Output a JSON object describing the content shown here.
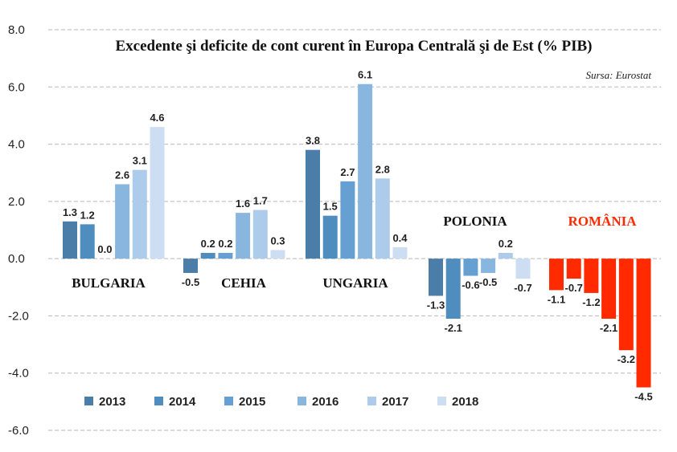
{
  "chart_data": {
    "type": "bar",
    "title": "Excedente şi deficite de cont curent în Europa Centrală şi de Est (% PIB)",
    "source": "Sursa: Eurostat",
    "categories": [
      "BULGARIA",
      "CEHIA",
      "UNGARIA",
      "POLONIA",
      "ROMÂNIA"
    ],
    "series": [
      {
        "name": "2013",
        "values": [
          1.3,
          -0.5,
          3.8,
          -1.3,
          -1.1
        ],
        "labels": [
          "1.3",
          "-0.5",
          "3.8",
          "-1.3",
          "-1.1"
        ]
      },
      {
        "name": "2014",
        "values": [
          1.2,
          0.2,
          1.5,
          -2.1,
          -0.7
        ],
        "labels": [
          "1.2",
          "0.2",
          "1.5",
          "-2.1",
          "-0.7"
        ]
      },
      {
        "name": "2015",
        "values": [
          0.0,
          0.2,
          2.7,
          -0.6,
          -1.2
        ],
        "labels": [
          "0.0",
          "0.2",
          "2.7",
          "-0.6",
          "-1.2"
        ]
      },
      {
        "name": "2016",
        "values": [
          2.6,
          1.6,
          6.1,
          -0.5,
          -2.1
        ],
        "labels": [
          "2.6",
          "1.6",
          "6.1",
          "-0.5",
          "-2.1"
        ]
      },
      {
        "name": "2017",
        "values": [
          3.1,
          1.7,
          2.8,
          0.2,
          -3.2
        ],
        "labels": [
          "3.1",
          "1.7",
          "2.8",
          "0.2",
          "-3.2"
        ]
      },
      {
        "name": "2018",
        "values": [
          4.6,
          0.3,
          0.4,
          -0.7,
          -4.5
        ],
        "labels": [
          "4.6",
          "0.3",
          "0.4",
          "-0.7",
          "-4.5"
        ]
      }
    ],
    "ylim": [
      -6,
      8
    ],
    "yticks": [
      "8.0",
      "6.0",
      "4.0",
      "2.0",
      "0.0",
      "-2.0",
      "-4.0",
      "-6.0"
    ],
    "grid": true,
    "legend": "bottom",
    "colors": {
      "series": [
        "#4a7ea8",
        "#4f8dbf",
        "#66a0d2",
        "#89b6df",
        "#adcbea",
        "#cddef2"
      ],
      "highlight": "#ff2a00",
      "highlight_category": "ROMÂNIA"
    }
  }
}
